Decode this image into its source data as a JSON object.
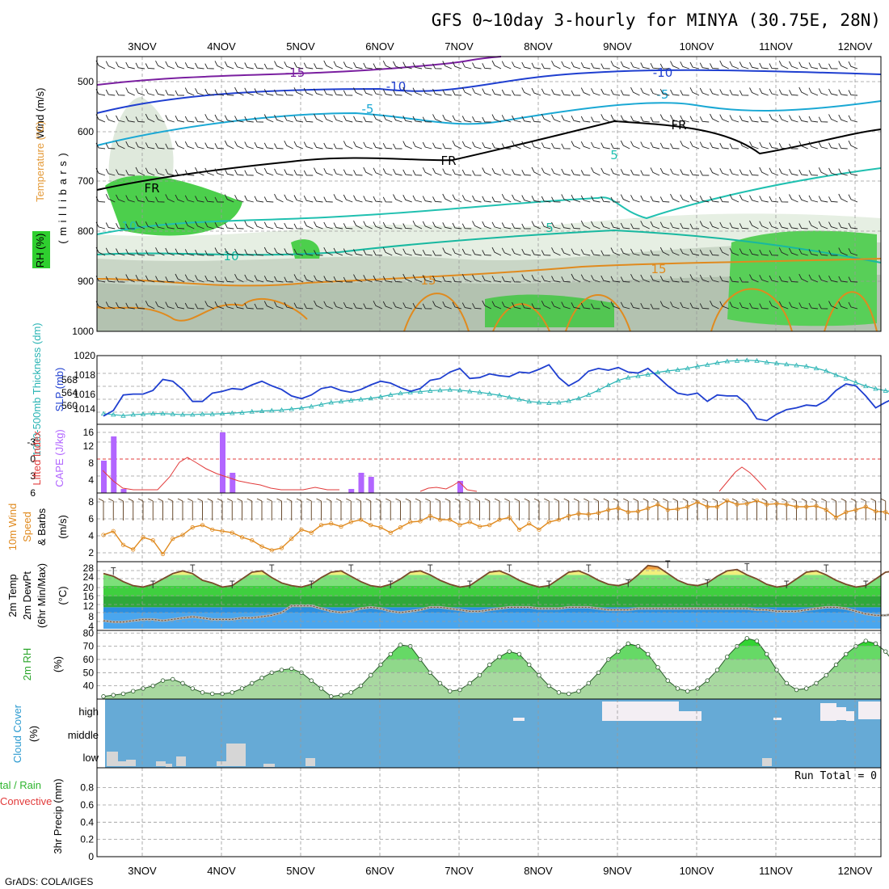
{
  "title": "GFS 0~10day 3-hourly for MINYA (30.75E, 28N)",
  "footer": "GrADS: COLA/IGES",
  "run_total": "Run Total = 0",
  "days": [
    "3NOV",
    "4NOV",
    "5NOV",
    "6NOV",
    "7NOV",
    "8NOV",
    "9NOV",
    "10NOV",
    "11NOV",
    "12NOV"
  ],
  "colors": {
    "frame": "#000000",
    "slp": "#1f3fd0",
    "thickness": "#2ab4b4",
    "cape": "#b266ff",
    "lifted": "#e23b3b",
    "wind": "#e08a1e",
    "temp_hot": "#f4a340",
    "temp_warm": "#f1ef7c",
    "temp_mid": "#7de07a",
    "temp_green": "#3fcf3f",
    "dew_dark": "#1f8fe0",
    "dew_light": "#44a8f0",
    "rh_dark": "#0ddf0d",
    "rh_mid": "#66d966",
    "rh_light": "#a8d8a0",
    "cloud_fill": "#66aad6",
    "cloud_clear": "#f3eef3",
    "cloud_low": "#d6d6d6",
    "iso_minus": "#7a1fa0",
    "iso_minus_blue": "#1f3fd0",
    "iso_cyan": "#1aa8d4",
    "iso_teal": "#20c0b0",
    "iso_orange": "#e08a1e",
    "freezing": "#000000"
  },
  "panels": {
    "upper": {
      "ylabel_wind": "Wind (m/s)",
      "ylabel_temp": "Temperature (°C)",
      "ylabel_rh": "RH (%)",
      "ylabel_mb": "( m i l l i b a r s )",
      "levels": [
        "500",
        "600",
        "700",
        "800",
        "900",
        "1000"
      ],
      "iso_labels": [
        "-15",
        "-10",
        "-10",
        "-5",
        "-5",
        "FR",
        "FR",
        "FR",
        "5",
        "5",
        "10",
        "10",
        "15",
        "15"
      ]
    },
    "slp": {
      "ylabel_thick": "1000-500mb Thickness (dm)",
      "ylabel_slp": "SLP (mb)",
      "left_ticks": [
        "568",
        "564",
        "560"
      ],
      "right_ticks": [
        "1020",
        "1018",
        "1016",
        "1014"
      ]
    },
    "cape": {
      "ylabel_li": "Lifted Index",
      "ylabel_cape": "CAPE (J/kg)",
      "left_ticks": [
        "-3",
        "0",
        "3",
        "6"
      ],
      "right_ticks": [
        "16",
        "12",
        "8",
        "4"
      ],
      "lifted_index": [
        6,
        6,
        6,
        6,
        6,
        6,
        6,
        6,
        6,
        6,
        6,
        6,
        6,
        6,
        6,
        6,
        6,
        6,
        6,
        6,
        6,
        6,
        6,
        6,
        6,
        6,
        6,
        6,
        6,
        6,
        6,
        6,
        6,
        6,
        6,
        6,
        6,
        6,
        6,
        6,
        6,
        6,
        6,
        6,
        6,
        6,
        6,
        6,
        6,
        6,
        6,
        6,
        6,
        6,
        6,
        6,
        6,
        6,
        6,
        6,
        6,
        6,
        6,
        6,
        6,
        6,
        6,
        6,
        6,
        6,
        6,
        6,
        6,
        6,
        6,
        6,
        6,
        6,
        6,
        6,
        6
      ]
    },
    "wind10": {
      "ylabel": "10m Wind Speed & Barbs (m/s)",
      "ylabel_parts": [
        "10m Wind",
        "Speed",
        "& Barbs",
        "(m/s)"
      ],
      "ticks": [
        "8",
        "6",
        "4",
        "2"
      ]
    },
    "temp2m": {
      "ylabel_parts": [
        "2m Temp",
        "2m DewPt",
        "(6hr Min/Max)",
        "(°C)"
      ],
      "ticks": [
        "28",
        "24",
        "20",
        "16",
        "12",
        "8",
        "4"
      ]
    },
    "rh2m": {
      "ylabel_parts": [
        "2m RH",
        "(%)"
      ],
      "ticks": [
        "80",
        "70",
        "60",
        "50",
        "40"
      ]
    },
    "cloud": {
      "ylabel_parts": [
        "Cloud Cover",
        "(%)"
      ],
      "levels": [
        "high",
        "middle",
        "low"
      ]
    },
    "precip": {
      "ylabel_parts": [
        "Total / Rain",
        "Convective",
        "3hr Precip (mm)"
      ],
      "ticks": [
        "0.8",
        "0.6",
        "0.4",
        "0.2",
        "0"
      ]
    }
  },
  "chart_data": [
    {
      "type": "line",
      "title": "SLP (mb) / 1000-500mb Thickness (dm)",
      "x_unit": "3-hourly steps from 2 NOV 12Z",
      "ylim": [
        1013,
        1020
      ],
      "series": [
        {
          "name": "SLP (mb)",
          "values": [
            1013.4,
            1014.0,
            1015.7,
            1015.8,
            1015.8,
            1016.2,
            1017.4,
            1017.2,
            1016.3,
            1015.0,
            1015.0,
            1015.9,
            1016.1,
            1016.4,
            1016.3,
            1016.8,
            1017.2,
            1016.7,
            1016.3,
            1015.6,
            1015.3,
            1015.7,
            1016.4,
            1016.6,
            1016.2,
            1016.0,
            1016.3,
            1016.8,
            1017.2,
            1017.0,
            1016.5,
            1016.1,
            1016.4,
            1017.3,
            1017.5,
            1018.2,
            1018.6,
            1017.5,
            1017.6,
            1018.0,
            1017.8,
            1017.7,
            1018.2,
            1018.1,
            1018.5,
            1019.0,
            1017.6,
            1016.7,
            1017.3,
            1018.3,
            1018.6,
            1018.4,
            1018.7,
            1018.2,
            1018.1,
            1018.6,
            1017.7,
            1016.7,
            1015.9,
            1015.7,
            1015.9,
            1015.0,
            1015.7,
            1015.6,
            1015.6,
            1014.7,
            1013.1,
            1012.9,
            1013.6,
            1014.1,
            1014.3,
            1014.6,
            1014.5,
            1015.1,
            1016.2,
            1016.9,
            1016.7,
            1015.6,
            1014.3,
            1014.9,
            1015.4,
            1016.9,
            1017.0,
            1017.6,
            1018.3,
            1017.4,
            1017.6,
            1017.6,
            1018.6,
            1018.0,
            1016.3,
            1016.7,
            1016.6,
            1016.4,
            1016.3,
            1016.5,
            1017.0,
            1017.6,
            1018.3
          ]
        },
        {
          "name": "Thickness (dm)",
          "values": [
            559.6,
            559.4,
            559.2,
            559.4,
            559.5,
            559.6,
            559.6,
            559.5,
            559.4,
            559.4,
            559.5,
            559.5,
            559.6,
            559.7,
            559.8,
            560.0,
            560.1,
            560.2,
            560.3,
            560.5,
            560.7,
            561.0,
            561.4,
            561.8,
            562.0,
            562.2,
            562.4,
            562.6,
            562.9,
            563.3,
            563.6,
            563.8,
            563.9,
            564.1,
            564.2,
            564.3,
            564.2,
            564.0,
            563.8,
            563.5,
            563.2,
            562.8,
            562.4,
            562.0,
            561.8,
            561.7,
            561.8,
            562.1,
            562.6,
            563.3,
            564.2,
            565.2,
            566.1,
            566.7,
            567.0,
            567.3,
            567.7,
            568.0,
            568.2,
            568.5,
            568.9,
            569.2,
            569.6,
            569.9,
            570.0,
            570.1,
            570.0,
            569.7,
            569.5,
            569.3,
            569.1,
            568.9,
            568.5,
            568.0,
            567.2,
            566.5,
            565.7,
            565.0,
            564.5,
            564.1,
            563.8,
            563.7,
            563.6,
            563.8,
            564.1,
            564.6,
            565.0,
            565.3,
            565.4,
            565.3,
            565.2,
            565.1,
            565.2,
            565.3,
            565.4,
            565.3,
            565.1,
            565.2,
            565.4
          ]
        }
      ]
    },
    {
      "type": "bar",
      "title": "CAPE (J/kg) / Lifted Index",
      "ylim": [
        0,
        16
      ],
      "cape_values": [
        8,
        14,
        1,
        0,
        0,
        0,
        0,
        0,
        0,
        0,
        0,
        0,
        15,
        5,
        0,
        0,
        0,
        0,
        0,
        0,
        0,
        0,
        0,
        0,
        0,
        1,
        5,
        4,
        0,
        0,
        0,
        0,
        0,
        0,
        0,
        0,
        3,
        0,
        0,
        0,
        0,
        0,
        0,
        0,
        0,
        0,
        0,
        0,
        0,
        0,
        0,
        0,
        0,
        0,
        0,
        0,
        0,
        0,
        0,
        0,
        0,
        0,
        0,
        0,
        0,
        0,
        0,
        0,
        0,
        0,
        0,
        0,
        0,
        0,
        0,
        0,
        0,
        0,
        0,
        0,
        0,
        0,
        0,
        0,
        0,
        0,
        0,
        0,
        0,
        0,
        0,
        0,
        0,
        0,
        0,
        0,
        0,
        0,
        0,
        0
      ]
    },
    {
      "type": "line",
      "title": "10m Wind Speed (m/s)",
      "ylim": [
        0,
        9
      ],
      "series": [
        {
          "name": "10m Wind Speed",
          "values": [
            3.5,
            4.0,
            2.2,
            1.6,
            3.2,
            2.8,
            1.0,
            3.0,
            3.5,
            4.5,
            4.8,
            4.2,
            4.0,
            3.8,
            3.2,
            2.8,
            2.0,
            1.5,
            1.8,
            3.0,
            4.2,
            3.8,
            4.8,
            5.0,
            4.6,
            5.2,
            5.5,
            4.8,
            4.5,
            3.8,
            4.5,
            5.2,
            5.3,
            6.0,
            5.5,
            5.5,
            4.8,
            5.2,
            4.6,
            4.8,
            5.5,
            5.8,
            4.2,
            5.0,
            4.2,
            5.2,
            5.5,
            6.0,
            6.3,
            6.2,
            6.4,
            6.8,
            7.0,
            6.5,
            6.6,
            7.0,
            7.5,
            6.8,
            6.9,
            7.2,
            7.8,
            7.2,
            7.2,
            8.0,
            7.5,
            7.6,
            8.0,
            7.5,
            7.6,
            7.5,
            7.2,
            7.2,
            7.3,
            6.8,
            5.8,
            6.5,
            6.8,
            7.2,
            6.6,
            6.5,
            5.8,
            5.8,
            6.0,
            5.6,
            5.8,
            4.6,
            4.2,
            3.0,
            3.8,
            4.6,
            4.4,
            4.5,
            5.2,
            5.5,
            5.8,
            5.6,
            5.4,
            4.8,
            4.0,
            4.2,
            4.0,
            4.2,
            3.8,
            4.2,
            4.2
          ]
        }
      ]
    },
    {
      "type": "area",
      "title": "2m Temp / 2m DewPt (°C)",
      "ylim": [
        4,
        28
      ],
      "series": [
        {
          "name": "2m Temp",
          "values": [
            24.5,
            23.5,
            21.5,
            20.0,
            19.5,
            20.5,
            22.5,
            24.5,
            25.5,
            24.5,
            22.0,
            21.0,
            19.5,
            20.0,
            22.5,
            25.0,
            25.5,
            23.0,
            21.0,
            20.0,
            19.5,
            20.5,
            23.0,
            25.0,
            25.5,
            23.5,
            21.5,
            20.0,
            19.5,
            20.5,
            22.5,
            25.0,
            25.5,
            24.0,
            22.0,
            20.5,
            19.5,
            20.0,
            22.5,
            25.0,
            25.5,
            24.0,
            22.0,
            20.5,
            19.5,
            20.0,
            22.5,
            25.0,
            25.5,
            24.0,
            22.0,
            20.5,
            20.0,
            21.0,
            24.0,
            27.5,
            27.0,
            24.5,
            22.0,
            20.5,
            20.0,
            21.0,
            23.5,
            25.5,
            26.0,
            24.0,
            22.5,
            20.5,
            19.5,
            20.0,
            22.5,
            25.0,
            25.5,
            24.0,
            22.0,
            20.5,
            19.5,
            20.0,
            22.5,
            25.0,
            25.5,
            24.0,
            22.0,
            20.5,
            18.0,
            19.0,
            17.5
          ]
        },
        {
          "name": "2m DewPt",
          "values": [
            7.0,
            6.5,
            6.5,
            7.0,
            7.5,
            7.5,
            7.0,
            7.5,
            8.0,
            8.5,
            8.0,
            7.5,
            7.5,
            7.5,
            8.0,
            8.0,
            8.5,
            9.0,
            10.0,
            12.5,
            12.5,
            12.5,
            11.5,
            10.5,
            10.0,
            10.5,
            11.5,
            12.0,
            11.5,
            10.5,
            10.0,
            10.5,
            11.0,
            12.0,
            12.0,
            11.5,
            11.0,
            10.5,
            10.5,
            11.0,
            11.5,
            12.0,
            12.0,
            12.0,
            11.5,
            11.5,
            11.5,
            12.0,
            12.0,
            12.0,
            11.5,
            11.0,
            11.0,
            11.0,
            11.5,
            11.5,
            11.5,
            11.5,
            11.5,
            11.5,
            11.5,
            11.5,
            11.5,
            11.5,
            11.5,
            11.5,
            11.0,
            11.0,
            10.5,
            10.5,
            10.5,
            11.0,
            11.5,
            12.0,
            12.0,
            11.5,
            10.5,
            9.5,
            9.0,
            9.0,
            9.5,
            11.0,
            11.0,
            9.0,
            7.5,
            8.0,
            11.5
          ]
        }
      ]
    },
    {
      "type": "area",
      "title": "2m RH (%)",
      "ylim": [
        30,
        80
      ],
      "series": [
        {
          "name": "2m RH",
          "values": [
            32,
            33,
            34,
            36,
            38,
            40,
            44,
            45,
            42,
            38,
            35,
            34,
            34,
            35,
            38,
            42,
            46,
            50,
            52,
            53,
            50,
            44,
            38,
            32,
            33,
            35,
            40,
            48,
            56,
            64,
            71,
            70,
            60,
            50,
            42,
            36,
            37,
            42,
            48,
            56,
            62,
            66,
            64,
            56,
            48,
            40,
            35,
            34,
            36,
            42,
            50,
            60,
            66,
            72,
            70,
            64,
            54,
            44,
            38,
            36,
            38,
            44,
            52,
            62,
            70,
            76,
            74,
            64,
            52,
            42,
            37,
            38,
            42,
            48,
            56,
            64,
            70,
            74,
            72,
            66,
            56,
            46,
            40,
            40,
            46,
            54,
            62,
            68,
            70,
            70,
            62,
            52,
            44,
            42,
            44,
            48,
            54,
            60,
            68,
            74,
            66,
            56,
            48,
            40,
            34,
            32,
            35,
            42,
            52,
            64,
            74,
            80,
            78
          ]
        }
      ]
    },
    {
      "type": "area",
      "title": "Cloud Cover (%)",
      "categories": [
        "high",
        "middle",
        "low"
      ],
      "high_clear_steps": [],
      "low_clear_steps": []
    },
    {
      "type": "bar",
      "title": "3hr Precip (mm)",
      "ylim": [
        0,
        1
      ],
      "values": []
    }
  ]
}
